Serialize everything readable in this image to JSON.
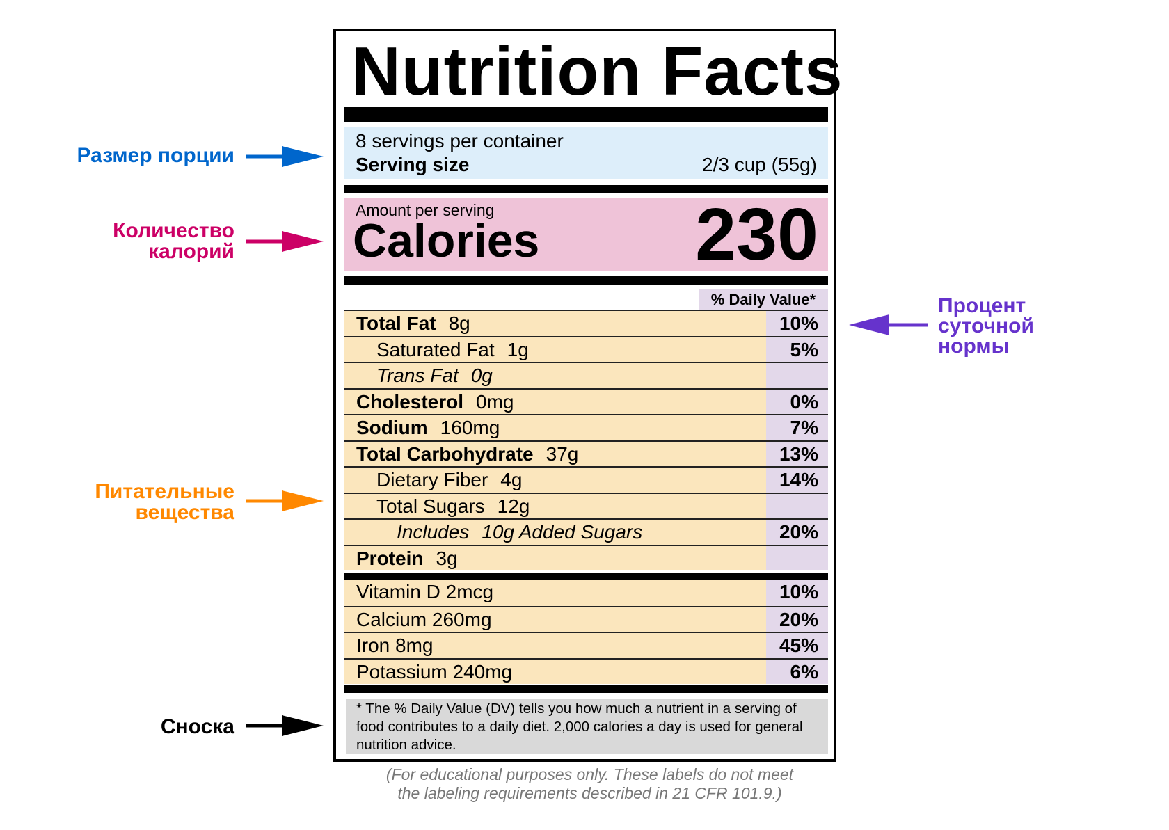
{
  "title": "Nutrition Facts",
  "serving": {
    "per_container": "8 servings per container",
    "size_label": "Serving size",
    "size_value": "2/3 cup (55g)"
  },
  "calories": {
    "amount_label": "Amount per serving",
    "label": "Calories",
    "value": "230"
  },
  "dv_header": "% Daily Value*",
  "nutrients": [
    {
      "name": "Total Fat",
      "amount": "8g",
      "dv": "10%",
      "bold": true,
      "indent": 0
    },
    {
      "name": "Saturated Fat",
      "amount": "1g",
      "dv": "5%",
      "bold": false,
      "indent": 1
    },
    {
      "name": "Trans Fat",
      "amount": "0g",
      "dv": "",
      "bold": false,
      "italic": true,
      "indent": 1
    },
    {
      "name": "Cholesterol",
      "amount": "0mg",
      "dv": "0%",
      "bold": true,
      "indent": 0
    },
    {
      "name": "Sodium",
      "amount": "160mg",
      "dv": "7%",
      "bold": true,
      "indent": 0
    },
    {
      "name": "Total Carbohydrate",
      "amount": "37g",
      "dv": "13%",
      "bold": true,
      "indent": 0
    },
    {
      "name": "Dietary Fiber",
      "amount": "4g",
      "dv": "14%",
      "bold": false,
      "indent": 1
    },
    {
      "name": "Total Sugars",
      "amount": "12g",
      "dv": "",
      "bold": false,
      "indent": 1
    },
    {
      "name": "Includes",
      "amount": "10g Added Sugars",
      "dv": "20%",
      "bold": false,
      "italic": true,
      "indent": 2
    },
    {
      "name": "Protein",
      "amount": "3g",
      "dv": "",
      "bold": true,
      "indent": 0
    }
  ],
  "vitamins": [
    {
      "name": "Vitamin D 2mcg",
      "dv": "10%"
    },
    {
      "name": "Calcium 260mg",
      "dv": "20%"
    },
    {
      "name": "Iron 8mg",
      "dv": "45%"
    },
    {
      "name": "Potassium 240mg",
      "dv": "6%"
    }
  ],
  "footnote": "* The % Daily Value (DV) tells you how much a nutrient in a serving of food contributes to a daily diet. 2,000 calories a day is used for general nutrition advice.",
  "caption_line1": "(For educational purposes only. These labels do not meet",
  "caption_line2": "the labeling requirements described in 21 CFR 101.9.)",
  "annotations": {
    "serving": {
      "text": "Размер порции",
      "color": "#0066cc"
    },
    "calories": {
      "line1": "Количество",
      "line2": "калорий",
      "color": "#cc0066"
    },
    "nutrients": {
      "line1": "Питательные",
      "line2": "вещества",
      "color": "#ff8800"
    },
    "footnote": {
      "text": "Сноска",
      "color": "#000000"
    },
    "dv": {
      "line1": "Процент",
      "line2": "суточной",
      "line3": "нормы",
      "color": "#6633cc"
    }
  },
  "colors": {
    "serving_bg": "#ddeefa",
    "calories_bg": "#efc3d8",
    "nutrient_bg": "#fbe6bd",
    "dv_bg": "#e3d8ea",
    "footnote_bg": "#d9d9d9"
  }
}
